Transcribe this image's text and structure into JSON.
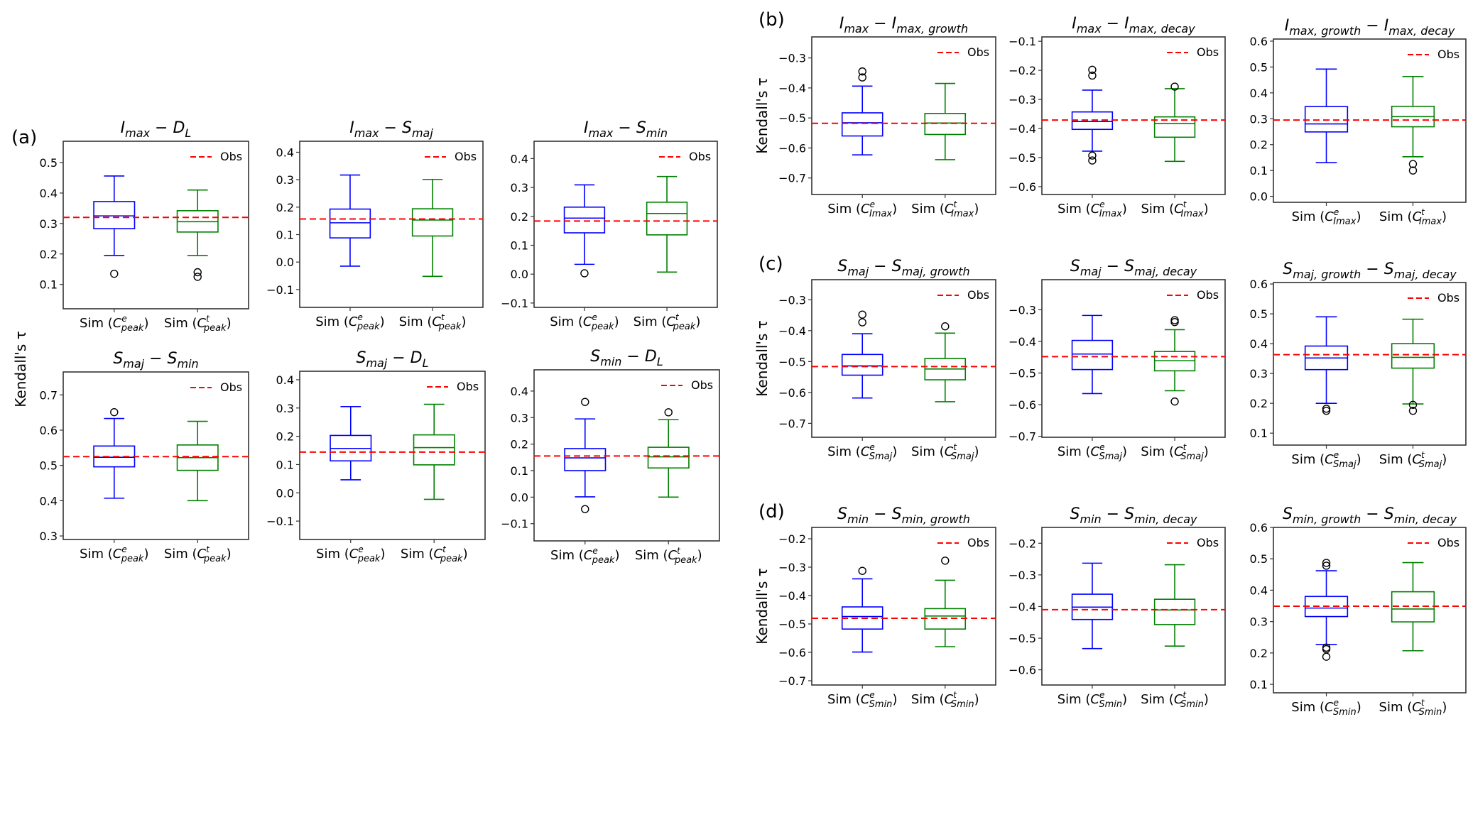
{
  "figure": {
    "colors": {
      "sim_e": "#0000ff",
      "sim_t": "#008000",
      "obs": "#ff0000",
      "frame": "#333333",
      "flier": "#000000"
    }
  },
  "chart_data": [
    {
      "type": "boxplot",
      "group": "(a)",
      "title_main": "I",
      "title": "I_max − D_L",
      "title_parts": [
        [
          "I",
          "max"
        ],
        [
          "D",
          "L"
        ]
      ],
      "ylabel": "Kendall's τ",
      "ylim": [
        0.02,
        0.57
      ],
      "yticks": [
        0.1,
        0.2,
        0.3,
        0.4,
        0.5
      ],
      "categories": [
        "Sim (C^e_peak)",
        "Sim (C^t_peak)"
      ],
      "cat_parts": [
        [
          "e",
          "peak"
        ],
        [
          "t",
          "peak"
        ]
      ],
      "obs": 0.32,
      "legend": "Obs",
      "legend_position": "upper-right",
      "series": [
        {
          "name": "Sim (C^e_peak)",
          "whislo": 0.195,
          "q1": 0.283,
          "med": 0.325,
          "q3": 0.372,
          "whishi": 0.456,
          "fliers": [
            0.135
          ]
        },
        {
          "name": "Sim (C^t_peak)",
          "whislo": 0.195,
          "q1": 0.272,
          "med": 0.306,
          "q3": 0.342,
          "whishi": 0.41,
          "fliers": [
            0.14,
            0.125
          ]
        }
      ]
    },
    {
      "type": "boxplot",
      "group": "(a)",
      "title": "I_max − S_maj",
      "title_parts": [
        [
          "I",
          "max"
        ],
        [
          "S",
          "maj"
        ]
      ],
      "ylim": [
        -0.165,
        0.44
      ],
      "yticks": [
        -0.1,
        0.0,
        0.1,
        0.2,
        0.3,
        0.4
      ],
      "categories": [
        "Sim (C^e_peak)",
        "Sim (C^t_peak)"
      ],
      "cat_parts": [
        [
          "e",
          "peak"
        ],
        [
          "t",
          "peak"
        ]
      ],
      "obs": 0.157,
      "legend": "Obs",
      "legend_position": "upper-right",
      "series": [
        {
          "name": "Sim (C^e_peak)",
          "whislo": -0.015,
          "q1": 0.088,
          "med": 0.143,
          "q3": 0.193,
          "whishi": 0.317,
          "fliers": []
        },
        {
          "name": "Sim (C^t_peak)",
          "whislo": -0.052,
          "q1": 0.095,
          "med": 0.153,
          "q3": 0.194,
          "whishi": 0.301,
          "fliers": []
        }
      ]
    },
    {
      "type": "boxplot",
      "group": "(a)",
      "title": "I_max − S_min",
      "title_parts": [
        [
          "I",
          "max"
        ],
        [
          "S",
          "min"
        ]
      ],
      "ylim": [
        -0.115,
        0.46
      ],
      "yticks": [
        -0.1,
        0.0,
        0.1,
        0.2,
        0.3,
        0.4
      ],
      "categories": [
        "Sim (C^e_peak)",
        "Sim (C^t_peak)"
      ],
      "cat_parts": [
        [
          "e",
          "peak"
        ],
        [
          "t",
          "peak"
        ]
      ],
      "obs": 0.184,
      "legend": "Obs",
      "legend_position": "upper-right",
      "series": [
        {
          "name": "Sim (C^e_peak)",
          "whislo": 0.034,
          "q1": 0.143,
          "med": 0.194,
          "q3": 0.232,
          "whishi": 0.309,
          "fliers": [
            0.003
          ]
        },
        {
          "name": "Sim (C^t_peak)",
          "whislo": 0.007,
          "q1": 0.136,
          "med": 0.21,
          "q3": 0.249,
          "whishi": 0.338,
          "fliers": []
        }
      ]
    },
    {
      "type": "boxplot",
      "group": "(a)",
      "title": "S_maj − S_min",
      "title_parts": [
        [
          "S",
          "maj"
        ],
        [
          "S",
          "min"
        ]
      ],
      "ylim": [
        0.29,
        0.765
      ],
      "yticks": [
        0.3,
        0.4,
        0.5,
        0.6,
        0.7
      ],
      "categories": [
        "Sim (C^e_peak)",
        "Sim (C^t_peak)"
      ],
      "cat_parts": [
        [
          "e",
          "peak"
        ],
        [
          "t",
          "peak"
        ]
      ],
      "obs": 0.525,
      "legend": "Obs",
      "legend_position": "upper-right",
      "series": [
        {
          "name": "Sim (C^e_peak)",
          "whislo": 0.407,
          "q1": 0.496,
          "med": 0.523,
          "q3": 0.555,
          "whishi": 0.633,
          "fliers": [
            0.651
          ]
        },
        {
          "name": "Sim (C^t_peak)",
          "whislo": 0.4,
          "q1": 0.486,
          "med": 0.522,
          "q3": 0.558,
          "whishi": 0.625,
          "fliers": []
        }
      ]
    },
    {
      "type": "boxplot",
      "group": "(a)",
      "title": "S_maj − D_L",
      "title_parts": [
        [
          "S",
          "maj"
        ],
        [
          "D",
          "L"
        ]
      ],
      "ylim": [
        -0.165,
        0.43
      ],
      "yticks": [
        -0.1,
        0.0,
        0.1,
        0.2,
        0.3,
        0.4
      ],
      "categories": [
        "Sim (C^e_peak)",
        "Sim (C^t_peak)"
      ],
      "cat_parts": [
        [
          "e",
          "peak"
        ],
        [
          "t",
          "peak"
        ]
      ],
      "obs": 0.144,
      "legend": "Obs",
      "legend_position": "upper-right",
      "series": [
        {
          "name": "Sim (C^e_peak)",
          "whislo": 0.046,
          "q1": 0.113,
          "med": 0.157,
          "q3": 0.203,
          "whishi": 0.305,
          "fliers": []
        },
        {
          "name": "Sim (C^t_peak)",
          "whislo": -0.023,
          "q1": 0.099,
          "med": 0.16,
          "q3": 0.205,
          "whishi": 0.313,
          "fliers": []
        }
      ]
    },
    {
      "type": "boxplot",
      "group": "(a)",
      "title": "S_min − D_L",
      "title_parts": [
        [
          "S",
          "min"
        ],
        [
          "D",
          "L"
        ]
      ],
      "ylim": [
        -0.165,
        0.48
      ],
      "yticks": [
        -0.1,
        0.0,
        0.1,
        0.2,
        0.3,
        0.4
      ],
      "categories": [
        "Sim (C^e_peak)",
        "Sim (C^t_peak)"
      ],
      "cat_parts": [
        [
          "e",
          "peak"
        ],
        [
          "t",
          "peak"
        ]
      ],
      "obs": 0.155,
      "legend": "Obs",
      "legend_position": "upper-right",
      "series": [
        {
          "name": "Sim (C^e_peak)",
          "whislo": 0.001,
          "q1": 0.1,
          "med": 0.148,
          "q3": 0.183,
          "whishi": 0.295,
          "fliers": [
            0.359,
            -0.045
          ]
        },
        {
          "name": "Sim (C^t_peak)",
          "whislo": 0.0,
          "q1": 0.11,
          "med": 0.152,
          "q3": 0.188,
          "whishi": 0.292,
          "fliers": [
            0.32
          ]
        }
      ]
    },
    {
      "type": "boxplot",
      "group": "(b)",
      "title": "I_max − I_max,growth",
      "title_parts": [
        [
          "I",
          "max"
        ],
        [
          "I",
          "max, growth"
        ]
      ],
      "ylabel": "Kendall's τ",
      "ylim": [
        -0.755,
        -0.23
      ],
      "yticks": [
        -0.7,
        -0.6,
        -0.5,
        -0.4,
        -0.3
      ],
      "categories": [
        "Sim (C^e_Imax)",
        "Sim (C^t_Imax)"
      ],
      "cat_parts": [
        [
          "e",
          "Imax"
        ],
        [
          "t",
          "Imax"
        ]
      ],
      "obs": -0.518,
      "legend": "Obs",
      "legend_position": "upper-right",
      "series": [
        {
          "name": "Sim (C^e_Imax)",
          "whislo": -0.623,
          "q1": -0.56,
          "med": -0.516,
          "q3": -0.483,
          "whishi": -0.394,
          "fliers": [
            -0.345,
            -0.365
          ]
        },
        {
          "name": "Sim (C^t_Imax)",
          "whislo": -0.639,
          "q1": -0.555,
          "med": -0.517,
          "q3": -0.485,
          "whishi": -0.385,
          "fliers": []
        }
      ]
    },
    {
      "type": "boxplot",
      "group": "(b)",
      "title": "I_max − I_max,decay",
      "title_parts": [
        [
          "I",
          "max"
        ],
        [
          "I",
          "max, decay"
        ]
      ],
      "ylim": [
        -0.627,
        -0.085
      ],
      "yticks": [
        -0.6,
        -0.5,
        -0.4,
        -0.3,
        -0.2,
        -0.1
      ],
      "categories": [
        "Sim (C^e_Imax)",
        "Sim (C^t_Imax)"
      ],
      "cat_parts": [
        [
          "e",
          "Imax"
        ],
        [
          "t",
          "Imax"
        ]
      ],
      "obs": -0.371,
      "legend": "Obs",
      "legend_position": "upper-right",
      "series": [
        {
          "name": "Sim (C^e_Imax)",
          "whislo": -0.478,
          "q1": -0.403,
          "med": -0.376,
          "q3": -0.343,
          "whishi": -0.268,
          "fliers": [
            -0.198,
            -0.218,
            -0.493,
            -0.51
          ]
        },
        {
          "name": "Sim (C^t_Imax)",
          "whislo": -0.513,
          "q1": -0.43,
          "med": -0.383,
          "q3": -0.36,
          "whishi": -0.263,
          "fliers": [
            -0.256
          ]
        }
      ]
    },
    {
      "type": "boxplot",
      "group": "(b)",
      "title": "I_max,growth − I_max,decay",
      "title_parts": [
        [
          "I",
          "max, growth"
        ],
        [
          "I",
          "max, decay"
        ]
      ],
      "ylim": [
        -0.023,
        0.608
      ],
      "yticks": [
        0.0,
        0.1,
        0.2,
        0.3,
        0.4,
        0.5,
        0.6
      ],
      "categories": [
        "Sim (C^e_Imax)",
        "Sim (C^t_Imax)"
      ],
      "cat_parts": [
        [
          "e",
          "Imax"
        ],
        [
          "t",
          "Imax"
        ]
      ],
      "obs": 0.295,
      "legend": "Obs",
      "legend_position": "upper-right",
      "series": [
        {
          "name": "Sim (C^e_Imax)",
          "whislo": 0.13,
          "q1": 0.249,
          "med": 0.28,
          "q3": 0.347,
          "whishi": 0.492,
          "fliers": []
        },
        {
          "name": "Sim (C^t_Imax)",
          "whislo": 0.153,
          "q1": 0.269,
          "med": 0.308,
          "q3": 0.348,
          "whishi": 0.463,
          "fliers": [
            0.125,
            0.1
          ]
        }
      ]
    },
    {
      "type": "boxplot",
      "group": "(c)",
      "title": "S_maj − S_maj,growth",
      "title_parts": [
        [
          "S",
          "maj"
        ],
        [
          "S",
          "maj, growth"
        ]
      ],
      "ylabel": "Kendall's τ",
      "ylim": [
        -0.745,
        -0.235
      ],
      "yticks": [
        -0.7,
        -0.6,
        -0.5,
        -0.4,
        -0.3
      ],
      "categories": [
        "Sim (C^e_Smaj)",
        "Sim (C^t_Smaj)"
      ],
      "cat_parts": [
        [
          "e",
          "Smaj"
        ],
        [
          "t",
          "Smaj"
        ]
      ],
      "obs": -0.516,
      "legend": "Obs",
      "legend_position": "upper-right",
      "series": [
        {
          "name": "Sim (C^e_Smaj)",
          "whislo": -0.618,
          "q1": -0.544,
          "med": -0.514,
          "q3": -0.477,
          "whishi": -0.41,
          "fliers": [
            -0.348,
            -0.373
          ]
        },
        {
          "name": "Sim (C^t_Smaj)",
          "whislo": -0.63,
          "q1": -0.559,
          "med": -0.524,
          "q3": -0.49,
          "whishi": -0.408,
          "fliers": [
            -0.386
          ]
        }
      ]
    },
    {
      "type": "boxplot",
      "group": "(c)",
      "title": "S_maj − S_maj,decay",
      "title_parts": [
        [
          "S",
          "maj"
        ],
        [
          "S",
          "maj, decay"
        ]
      ],
      "ylim": [
        -0.703,
        -0.205
      ],
      "yticks": [
        -0.7,
        -0.6,
        -0.5,
        -0.4,
        -0.3
      ],
      "categories": [
        "Sim (C^e_Smaj)",
        "Sim (C^t_Smaj)"
      ],
      "cat_parts": [
        [
          "e",
          "Smaj"
        ],
        [
          "t",
          "Smaj"
        ]
      ],
      "obs": -0.448,
      "legend": "Obs",
      "legend_position": "upper-right",
      "series": [
        {
          "name": "Sim (C^e_Smaj)",
          "whislo": -0.565,
          "q1": -0.489,
          "med": -0.44,
          "q3": -0.397,
          "whishi": -0.318,
          "fliers": []
        },
        {
          "name": "Sim (C^t_Smaj)",
          "whislo": -0.556,
          "q1": -0.493,
          "med": -0.461,
          "q3": -0.432,
          "whishi": -0.363,
          "fliers": [
            -0.333,
            -0.339,
            -0.59
          ]
        }
      ]
    },
    {
      "type": "boxplot",
      "group": "(c)",
      "title": "S_maj,growth − S_maj,decay",
      "title_parts": [
        [
          "S",
          "maj, growth"
        ],
        [
          "S",
          "maj, decay"
        ]
      ],
      "ylim": [
        0.06,
        0.605
      ],
      "yticks": [
        0.1,
        0.2,
        0.3,
        0.4,
        0.5,
        0.6
      ],
      "categories": [
        "Sim (C^e_Smaj)",
        "Sim (C^t_Smaj)"
      ],
      "cat_parts": [
        [
          "e",
          "Smaj"
        ],
        [
          "t",
          "Smaj"
        ]
      ],
      "obs": 0.363,
      "legend": "Obs",
      "legend_position": "upper-right",
      "series": [
        {
          "name": "Sim (C^e_Smaj)",
          "whislo": 0.2,
          "q1": 0.313,
          "med": 0.352,
          "q3": 0.392,
          "whishi": 0.49,
          "fliers": [
            0.182,
            0.175
          ]
        },
        {
          "name": "Sim (C^t_Smaj)",
          "whislo": 0.198,
          "q1": 0.318,
          "med": 0.354,
          "q3": 0.4,
          "whishi": 0.482,
          "fliers": [
            0.195,
            0.175
          ]
        }
      ]
    },
    {
      "type": "boxplot",
      "group": "(d)",
      "title": "S_min − S_min,growth",
      "title_parts": [
        [
          "S",
          "min"
        ],
        [
          "S",
          "min, growth"
        ]
      ],
      "ylabel": "Kendall's τ",
      "ylim": [
        -0.715,
        -0.16
      ],
      "yticks": [
        -0.7,
        -0.6,
        -0.5,
        -0.4,
        -0.3,
        -0.2
      ],
      "categories": [
        "Sim (C^e_Smin)",
        "Sim (C^t_Smin)"
      ],
      "cat_parts": [
        [
          "e",
          "Smin"
        ],
        [
          "t",
          "Smin"
        ]
      ],
      "obs": -0.48,
      "legend": "Obs",
      "legend_position": "upper-right",
      "series": [
        {
          "name": "Sim (C^e_Smin)",
          "whislo": -0.599,
          "q1": -0.518,
          "med": -0.474,
          "q3": -0.44,
          "whishi": -0.341,
          "fliers": [
            -0.313
          ]
        },
        {
          "name": "Sim (C^t_Smin)",
          "whislo": -0.58,
          "q1": -0.518,
          "med": -0.472,
          "q3": -0.446,
          "whishi": -0.346,
          "fliers": [
            -0.277
          ]
        }
      ]
    },
    {
      "type": "boxplot",
      "group": "(d)",
      "title": "S_min − S_min,decay",
      "title_parts": [
        [
          "S",
          "min"
        ],
        [
          "S",
          "min, decay"
        ]
      ],
      "ylim": [
        -0.648,
        -0.15
      ],
      "yticks": [
        -0.6,
        -0.5,
        -0.4,
        -0.3,
        -0.2
      ],
      "categories": [
        "Sim (C^e_Smin)",
        "Sim (C^t_Smin)"
      ],
      "cat_parts": [
        [
          "e",
          "Smin"
        ],
        [
          "t",
          "Smin"
        ]
      ],
      "obs": -0.41,
      "legend": "Obs",
      "legend_position": "upper-right",
      "series": [
        {
          "name": "Sim (C^e_Smin)",
          "whislo": -0.533,
          "q1": -0.441,
          "med": -0.402,
          "q3": -0.361,
          "whishi": -0.263,
          "fliers": []
        },
        {
          "name": "Sim (C^t_Smin)",
          "whislo": -0.525,
          "q1": -0.457,
          "med": -0.411,
          "q3": -0.377,
          "whishi": -0.268,
          "fliers": []
        }
      ]
    },
    {
      "type": "boxplot",
      "group": "(d)",
      "title": "S_min,growth − S_min,decay",
      "title_parts": [
        [
          "S",
          "min, growth"
        ],
        [
          "S",
          "min, decay"
        ]
      ],
      "ylim": [
        0.073,
        0.6
      ],
      "yticks": [
        0.1,
        0.2,
        0.3,
        0.4,
        0.5,
        0.6
      ],
      "categories": [
        "Sim (C^e_Smin)",
        "Sim (C^t_Smin)"
      ],
      "cat_parts": [
        [
          "e",
          "Smin"
        ],
        [
          "t",
          "Smin"
        ]
      ],
      "obs": 0.349,
      "legend": "Obs",
      "legend_position": "upper-right",
      "series": [
        {
          "name": "Sim (C^e_Smin)",
          "whislo": 0.227,
          "q1": 0.316,
          "med": 0.343,
          "q3": 0.38,
          "whishi": 0.462,
          "fliers": [
            0.487,
            0.478,
            0.217,
            0.212,
            0.188
          ]
        },
        {
          "name": "Sim (C^t_Smin)",
          "whislo": 0.207,
          "q1": 0.299,
          "med": 0.34,
          "q3": 0.395,
          "whishi": 0.488,
          "fliers": []
        }
      ]
    }
  ],
  "labels": {
    "panel_a": "(a)",
    "panel_b": "(b)",
    "panel_c": "(c)",
    "panel_d": "(d)",
    "ylabel": "Kendall's τ",
    "sim_prefix": "Sim (",
    "c_letter": "C",
    "close_paren": ")"
  }
}
